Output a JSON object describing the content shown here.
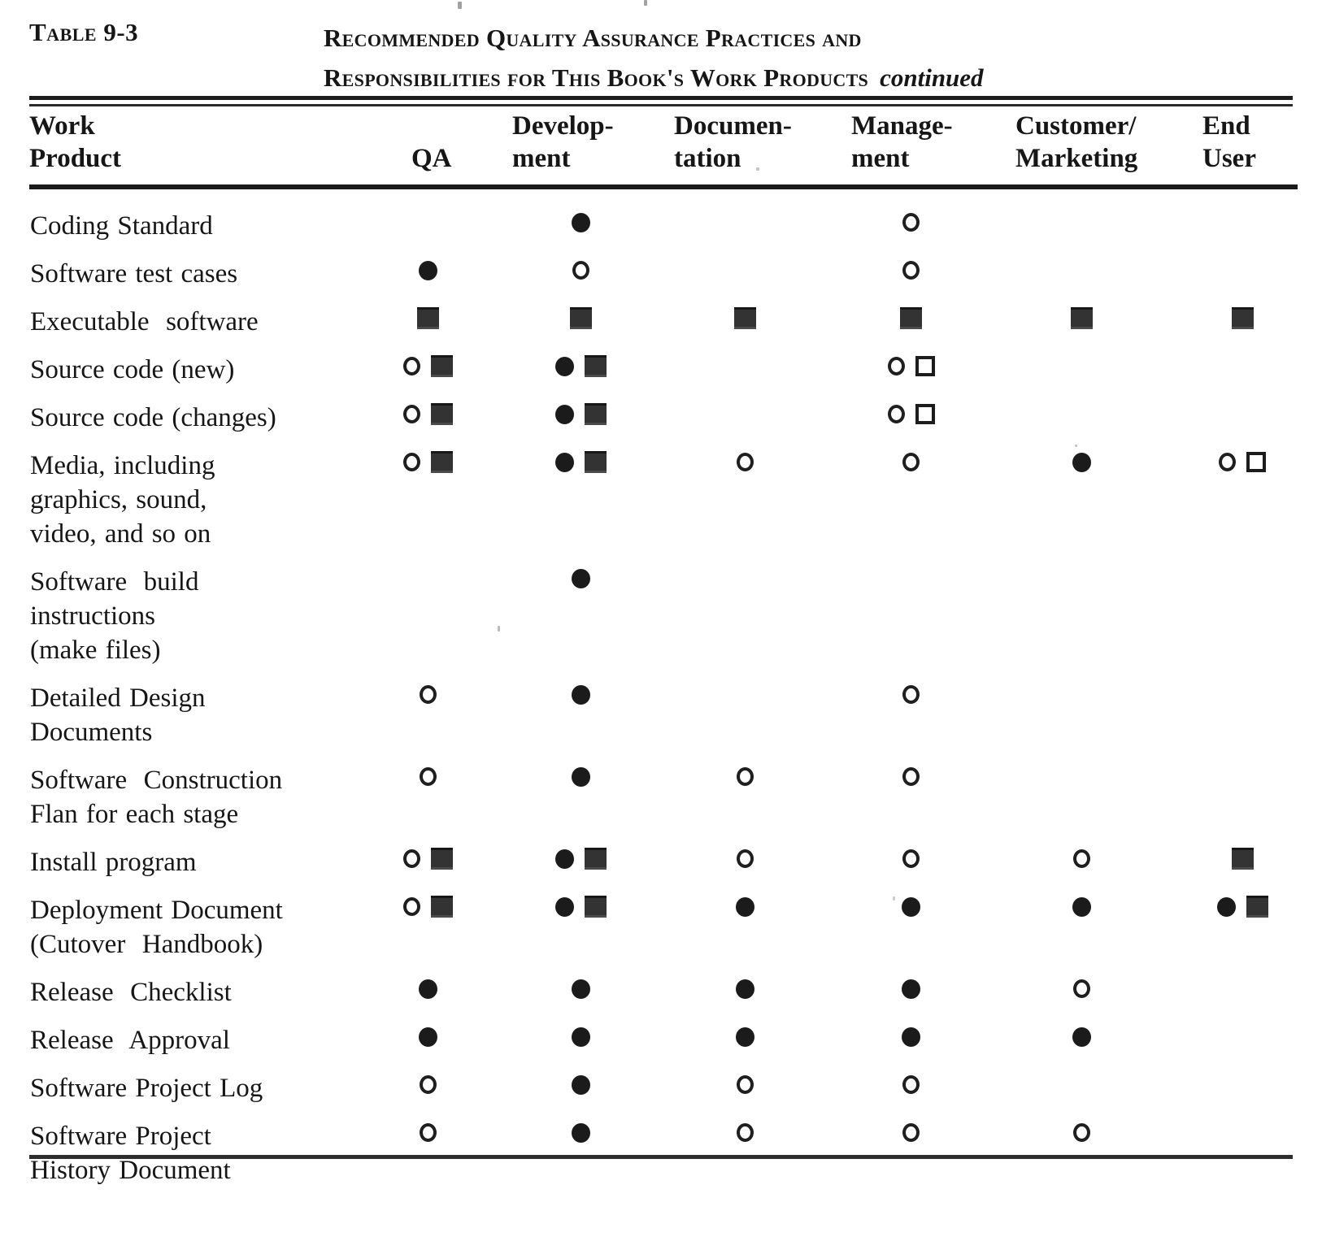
{
  "title": {
    "label": "Table 9-3",
    "caption_line1": "Recommended Quality Assurance Practices and",
    "caption_line2": "Responsibilities for This Book's Work Products",
    "caption_suffix": "continued"
  },
  "table": {
    "columns": [
      {
        "id": "work_product",
        "lines": [
          "Work",
          "Product"
        ]
      },
      {
        "id": "qa",
        "lines": [
          "QA"
        ]
      },
      {
        "id": "development",
        "lines": [
          "Develop-",
          "ment"
        ]
      },
      {
        "id": "documentation",
        "lines": [
          "Documen-",
          "tation"
        ]
      },
      {
        "id": "management",
        "lines": [
          "Manage-",
          "ment"
        ]
      },
      {
        "id": "customer_marketing",
        "lines": [
          "Customer/",
          "Marketing"
        ]
      },
      {
        "id": "end_user",
        "lines": [
          "End",
          "User"
        ]
      }
    ],
    "symbol_glyphs": {
      "filled-circle": "●",
      "open-circle": "○",
      "filled-square": "■",
      "open-square": "□"
    },
    "rows": [
      {
        "label_lines": [
          "Coding Standard"
        ],
        "cells": {
          "development": [
            "filled-circle"
          ],
          "management": [
            "open-circle"
          ]
        }
      },
      {
        "label_lines": [
          "Software test cases"
        ],
        "cells": {
          "qa": [
            "filled-circle"
          ],
          "development": [
            "open-circle"
          ],
          "management": [
            "open-circle"
          ]
        }
      },
      {
        "label_lines": [
          "Executable  software"
        ],
        "cells": {
          "qa": [
            "filled-square"
          ],
          "development": [
            "filled-square"
          ],
          "documentation": [
            "filled-square"
          ],
          "management": [
            "filled-square"
          ],
          "customer_marketing": [
            "filled-square"
          ],
          "end_user": [
            "filled-square"
          ]
        }
      },
      {
        "label_lines": [
          "Source code (new)"
        ],
        "cells": {
          "qa": [
            "open-circle",
            "filled-square"
          ],
          "development": [
            "filled-circle",
            "filled-square"
          ],
          "management": [
            "open-circle",
            "open-square"
          ]
        }
      },
      {
        "label_lines": [
          "Source code (changes)"
        ],
        "cells": {
          "qa": [
            "open-circle",
            "filled-square"
          ],
          "development": [
            "filled-circle",
            "filled-square"
          ],
          "management": [
            "open-circle",
            "open-square"
          ]
        }
      },
      {
        "label_lines": [
          "Media, including",
          "graphics, sound,",
          "video, and so on"
        ],
        "cells": {
          "qa": [
            "open-circle",
            "filled-square"
          ],
          "development": [
            "filled-circle",
            "filled-square"
          ],
          "documentation": [
            "open-circle"
          ],
          "management": [
            "open-circle"
          ],
          "customer_marketing": [
            "filled-circle"
          ],
          "end_user": [
            "open-circle",
            "open-square"
          ]
        }
      },
      {
        "label_lines": [
          "Software  build",
          "instructions",
          "(make files)"
        ],
        "cells": {
          "development": [
            "filled-circle"
          ]
        }
      },
      {
        "label_lines": [
          "Detailed Design",
          "Documents"
        ],
        "cells": {
          "qa": [
            "open-circle"
          ],
          "development": [
            "filled-circle"
          ],
          "management": [
            "open-circle"
          ]
        }
      },
      {
        "label_lines": [
          "Software  Construction",
          "Flan for each stage"
        ],
        "cells": {
          "qa": [
            "open-circle"
          ],
          "development": [
            "filled-circle"
          ],
          "documentation": [
            "open-circle"
          ],
          "management": [
            "open-circle"
          ]
        }
      },
      {
        "label_lines": [
          "Install program"
        ],
        "cells": {
          "qa": [
            "open-circle",
            "filled-square"
          ],
          "development": [
            "filled-circle",
            "filled-square"
          ],
          "documentation": [
            "open-circle"
          ],
          "management": [
            "open-circle"
          ],
          "customer_marketing": [
            "open-circle"
          ],
          "end_user": [
            "filled-square"
          ]
        }
      },
      {
        "label_lines": [
          "Deployment Document",
          "(Cutover  Handbook)"
        ],
        "cells": {
          "qa": [
            "open-circle",
            "filled-square"
          ],
          "development": [
            "filled-circle",
            "filled-square"
          ],
          "documentation": [
            "filled-circle"
          ],
          "management": [
            "filled-circle"
          ],
          "customer_marketing": [
            "filled-circle"
          ],
          "end_user": [
            "filled-circle",
            "filled-square"
          ]
        }
      },
      {
        "label_lines": [
          "Release  Checklist"
        ],
        "cells": {
          "qa": [
            "filled-circle"
          ],
          "development": [
            "filled-circle"
          ],
          "documentation": [
            "filled-circle"
          ],
          "management": [
            "filled-circle"
          ],
          "customer_marketing": [
            "open-circle"
          ]
        }
      },
      {
        "label_lines": [
          "Release  Approval"
        ],
        "cells": {
          "qa": [
            "filled-circle"
          ],
          "development": [
            "filled-circle"
          ],
          "documentation": [
            "filled-circle"
          ],
          "management": [
            "filled-circle"
          ],
          "customer_marketing": [
            "filled-circle"
          ]
        }
      },
      {
        "label_lines": [
          "Software Project Log"
        ],
        "cells": {
          "qa": [
            "open-circle"
          ],
          "development": [
            "filled-circle"
          ],
          "documentation": [
            "open-circle"
          ],
          "management": [
            "open-circle"
          ]
        }
      },
      {
        "label_lines": [
          "Software Project",
          "History Document"
        ],
        "cells": {
          "qa": [
            "open-circle"
          ],
          "development": [
            "filled-circle"
          ],
          "documentation": [
            "open-circle"
          ],
          "management": [
            "open-circle"
          ],
          "customer_marketing": [
            "open-circle"
          ]
        }
      }
    ]
  }
}
